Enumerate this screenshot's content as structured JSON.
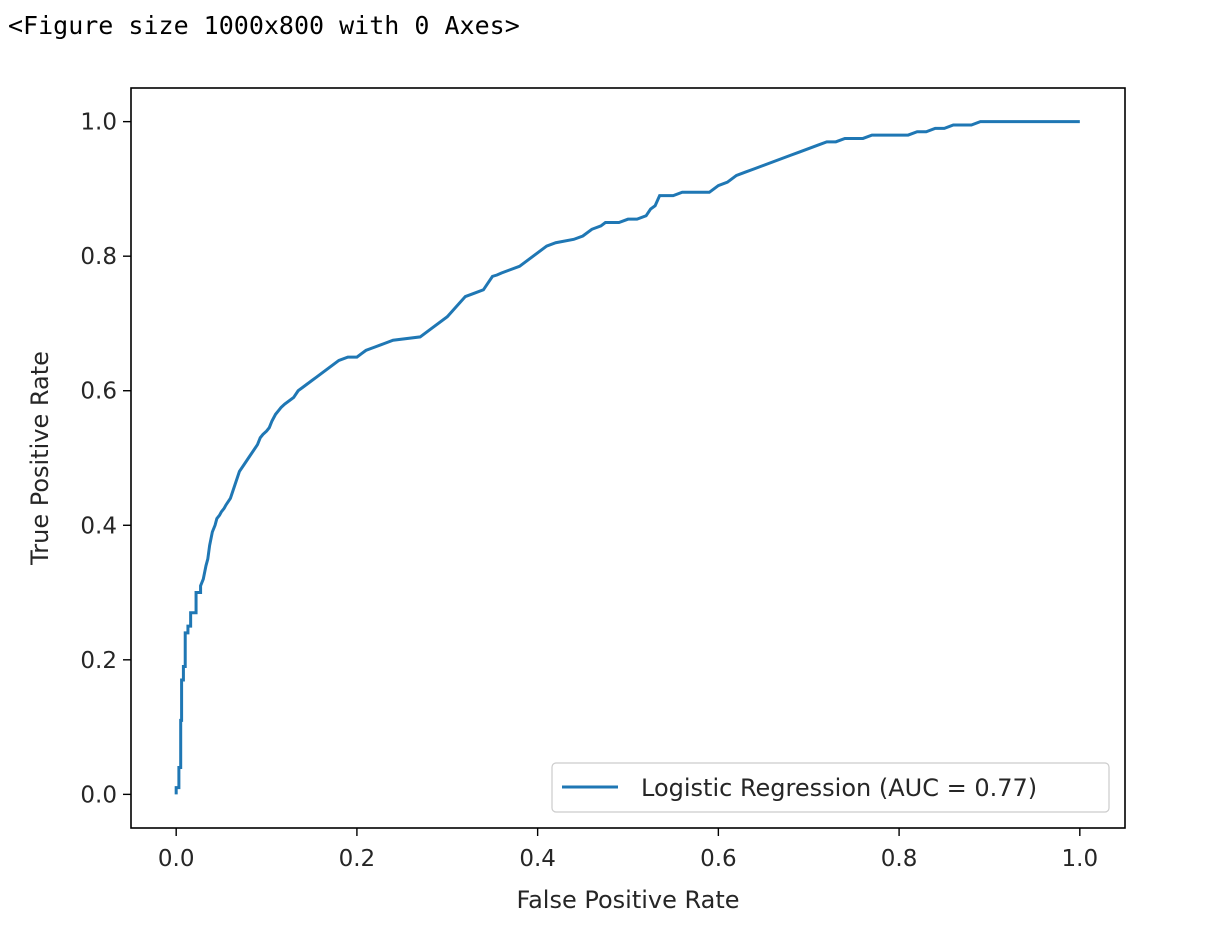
{
  "output": {
    "header_text": "<Figure size 1000x800 with 0 Axes>"
  },
  "chart_data": {
    "type": "line",
    "title": "",
    "xlabel": "False Positive Rate",
    "ylabel": "True Positive Rate",
    "xlim": [
      -0.05,
      1.05
    ],
    "ylim": [
      -0.05,
      1.05
    ],
    "xticks": [
      "0.0",
      "0.2",
      "0.4",
      "0.6",
      "0.8",
      "1.0"
    ],
    "yticks": [
      "0.0",
      "0.2",
      "0.4",
      "0.6",
      "0.8",
      "1.0"
    ],
    "grid": false,
    "legend": {
      "placement": "lower right",
      "entries": [
        "Logistic Regression (AUC = 0.77)"
      ]
    },
    "series": [
      {
        "name": "Logistic Regression (AUC = 0.77)",
        "color": "#1f77b4",
        "x": [
          0.0,
          0.0,
          0.003,
          0.003,
          0.005,
          0.005,
          0.006,
          0.006,
          0.008,
          0.008,
          0.01,
          0.01,
          0.013,
          0.013,
          0.016,
          0.016,
          0.022,
          0.022,
          0.027,
          0.027,
          0.03,
          0.033,
          0.035,
          0.037,
          0.04,
          0.043,
          0.045,
          0.048,
          0.05,
          0.053,
          0.055,
          0.06,
          0.065,
          0.07,
          0.075,
          0.08,
          0.09,
          0.093,
          0.096,
          0.1,
          0.103,
          0.106,
          0.11,
          0.113,
          0.116,
          0.12,
          0.13,
          0.135,
          0.14,
          0.145,
          0.15,
          0.155,
          0.16,
          0.165,
          0.17,
          0.175,
          0.18,
          0.19,
          0.2,
          0.205,
          0.21,
          0.22,
          0.23,
          0.24,
          0.27,
          0.28,
          0.3,
          0.31,
          0.32,
          0.33,
          0.34,
          0.345,
          0.35,
          0.355,
          0.36,
          0.37,
          0.38,
          0.39,
          0.4,
          0.41,
          0.42,
          0.44,
          0.45,
          0.46,
          0.47,
          0.475,
          0.48,
          0.49,
          0.5,
          0.51,
          0.52,
          0.525,
          0.53,
          0.535,
          0.54,
          0.55,
          0.56,
          0.58,
          0.59,
          0.595,
          0.6,
          0.61,
          0.615,
          0.62,
          0.63,
          0.64,
          0.65,
          0.66,
          0.67,
          0.68,
          0.69,
          0.7,
          0.71,
          0.72,
          0.73,
          0.74,
          0.75,
          0.76,
          0.77,
          0.78,
          0.79,
          0.8,
          0.81,
          0.82,
          0.83,
          0.84,
          0.85,
          0.86,
          0.87,
          0.88,
          0.89,
          0.9,
          0.91,
          0.92,
          0.93,
          0.94,
          0.95,
          0.96,
          0.97,
          0.98,
          0.99,
          1.0
        ],
        "y": [
          0.0,
          0.01,
          0.01,
          0.04,
          0.04,
          0.11,
          0.11,
          0.17,
          0.17,
          0.19,
          0.19,
          0.24,
          0.24,
          0.25,
          0.25,
          0.27,
          0.27,
          0.3,
          0.3,
          0.31,
          0.32,
          0.34,
          0.35,
          0.37,
          0.39,
          0.4,
          0.41,
          0.415,
          0.42,
          0.425,
          0.43,
          0.44,
          0.46,
          0.48,
          0.49,
          0.5,
          0.52,
          0.53,
          0.535,
          0.54,
          0.545,
          0.555,
          0.565,
          0.57,
          0.575,
          0.58,
          0.59,
          0.6,
          0.605,
          0.61,
          0.615,
          0.62,
          0.625,
          0.63,
          0.635,
          0.64,
          0.645,
          0.65,
          0.65,
          0.655,
          0.66,
          0.665,
          0.67,
          0.675,
          0.68,
          0.69,
          0.71,
          0.725,
          0.74,
          0.745,
          0.75,
          0.76,
          0.77,
          0.772,
          0.775,
          0.78,
          0.785,
          0.795,
          0.805,
          0.815,
          0.82,
          0.825,
          0.83,
          0.84,
          0.845,
          0.85,
          0.85,
          0.85,
          0.855,
          0.855,
          0.86,
          0.87,
          0.875,
          0.89,
          0.89,
          0.89,
          0.895,
          0.895,
          0.895,
          0.9,
          0.905,
          0.91,
          0.915,
          0.92,
          0.925,
          0.93,
          0.935,
          0.94,
          0.945,
          0.95,
          0.955,
          0.96,
          0.965,
          0.97,
          0.97,
          0.975,
          0.975,
          0.975,
          0.98,
          0.98,
          0.98,
          0.98,
          0.98,
          0.985,
          0.985,
          0.99,
          0.99,
          0.995,
          0.995,
          0.995,
          1.0,
          1.0,
          1.0,
          1.0,
          1.0,
          1.0,
          1.0,
          1.0,
          1.0,
          1.0,
          1.0,
          1.0
        ]
      }
    ]
  }
}
